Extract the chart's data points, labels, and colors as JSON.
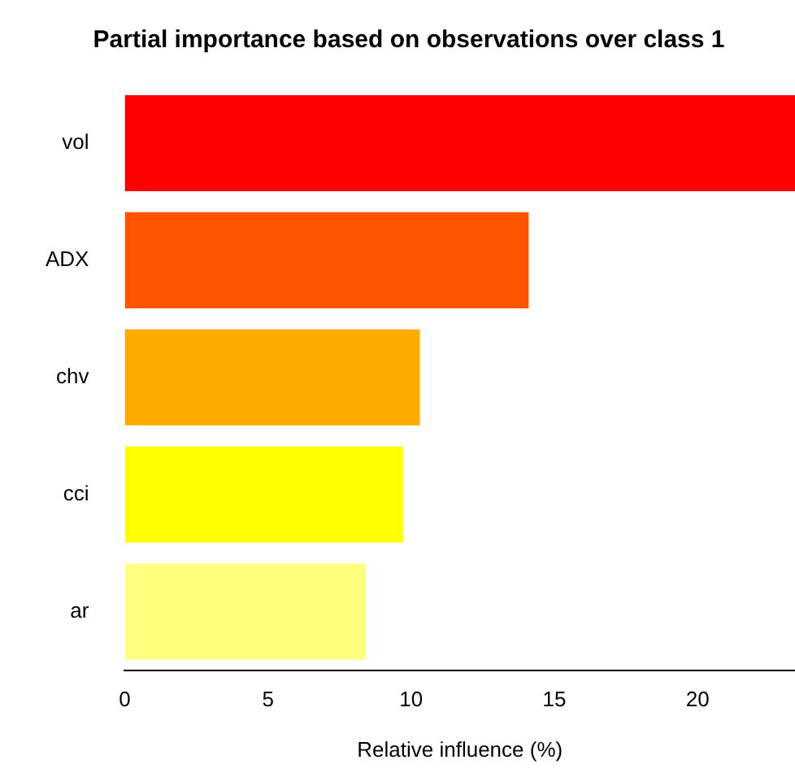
{
  "chart_data": {
    "type": "bar",
    "orientation": "horizontal",
    "title": "Partial importance based on observations over class 1",
    "xlabel": "Relative influence (%)",
    "categories": [
      "vol",
      "ADX",
      "chv",
      "cci",
      "ar"
    ],
    "values": [
      23.4,
      14.1,
      10.3,
      9.7,
      8.4
    ],
    "colors": [
      "#ff0000",
      "#ff5500",
      "#ffaa00",
      "#ffff00",
      "#ffff80"
    ],
    "xlim": [
      0,
      23.4
    ],
    "xticks": [
      0,
      5,
      10,
      15,
      20
    ],
    "grid": false,
    "legend": false
  }
}
